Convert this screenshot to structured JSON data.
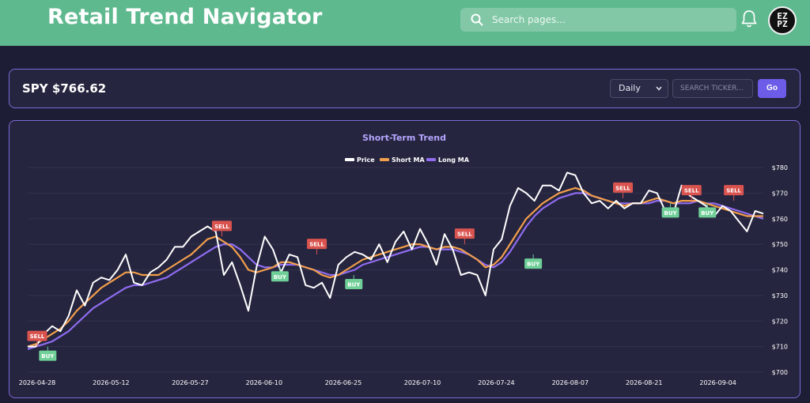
{
  "app": {
    "title": "Retail Trend Navigator"
  },
  "search": {
    "placeholder": "Search pages..."
  },
  "user": {
    "avatar_text": "EZ PZ"
  },
  "ticker": {
    "label": "SPY $766.62",
    "interval": "Daily",
    "input_placeholder": "SEARCH TICKER...",
    "go_label": "Go"
  },
  "chart_data": {
    "type": "line",
    "title": "Short-Term Trend",
    "legend": [
      "Price",
      "Short MA",
      "Long MA"
    ],
    "colors": {
      "Price": "#ffffff",
      "Short MA": "#f29e4c",
      "Long MA": "#8f6cf0"
    },
    "x_ticks": [
      "2026-04-28",
      "2026-05-12",
      "2026-05-27",
      "2026-06-10",
      "2026-06-25",
      "2026-07-10",
      "2026-07-24",
      "2026-08-07",
      "2026-08-21",
      "2026-09-04"
    ],
    "y_ticks": [
      "$700",
      "$710",
      "$720",
      "$730",
      "$740",
      "$750",
      "$760",
      "$770",
      "$780"
    ],
    "ylim": [
      700,
      780
    ],
    "grid": true,
    "legend_position": "top-center",
    "price": [
      710,
      710,
      715,
      718,
      716,
      722,
      732,
      726,
      735,
      737,
      736,
      740,
      746,
      735,
      734,
      739,
      741,
      744,
      749,
      749,
      753,
      755,
      757,
      755,
      738,
      743,
      734,
      724,
      741,
      753,
      748,
      739,
      746,
      745,
      734,
      733,
      735,
      729,
      742,
      745,
      747,
      746,
      744,
      750,
      743,
      751,
      755,
      748,
      756,
      750,
      742,
      754,
      748,
      738,
      739,
      738,
      730,
      748,
      752,
      765,
      772,
      770,
      767,
      773,
      773,
      771,
      778,
      777,
      770,
      766,
      767,
      764,
      767,
      764,
      766,
      766,
      771,
      770,
      763,
      762,
      773,
      769,
      767,
      765,
      761,
      765,
      763,
      759,
      755,
      763,
      762
    ],
    "short_ma": [
      710,
      711,
      713,
      715,
      717,
      720,
      724,
      727,
      730,
      733,
      735,
      737,
      739,
      739,
      738,
      738,
      738,
      740,
      742,
      744,
      746,
      749,
      752,
      753,
      751,
      749,
      745,
      740,
      739,
      740,
      741,
      743,
      743,
      742,
      741,
      740,
      738,
      737,
      738,
      740,
      742,
      744,
      745,
      746,
      747,
      748,
      749,
      750,
      750,
      749,
      748,
      749,
      749,
      748,
      746,
      744,
      741,
      742,
      745,
      750,
      755,
      760,
      763,
      766,
      768,
      770,
      771,
      772,
      771,
      769,
      768,
      767,
      766,
      765,
      766,
      766,
      767,
      768,
      767,
      766,
      767,
      767,
      767,
      766,
      765,
      764,
      763,
      762,
      761,
      761,
      761
    ],
    "long_ma": [
      709,
      710,
      711,
      712,
      714,
      716,
      719,
      722,
      725,
      727,
      729,
      731,
      733,
      734,
      734,
      735,
      736,
      737,
      739,
      741,
      743,
      745,
      747,
      749,
      750,
      750,
      748,
      745,
      742,
      741,
      741,
      742,
      742,
      742,
      741,
      740,
      739,
      738,
      738,
      739,
      740,
      742,
      743,
      744,
      745,
      746,
      747,
      748,
      749,
      749,
      748,
      748,
      748,
      747,
      746,
      744,
      742,
      741,
      743,
      747,
      752,
      757,
      761,
      764,
      766,
      768,
      769,
      770,
      770,
      769,
      768,
      767,
      766,
      766,
      766,
      766,
      766,
      767,
      767,
      766,
      766,
      766,
      767,
      766,
      766,
      765,
      764,
      763,
      762,
      761,
      760
    ],
    "signals": [
      {
        "label": "SELL",
        "x": "2026-04-28",
        "y": 710
      },
      {
        "label": "BUY",
        "x": "2026-04-30",
        "y": 710
      },
      {
        "label": "SELL",
        "x": "2026-06-02",
        "y": 753
      },
      {
        "label": "BUY",
        "x": "2026-06-13",
        "y": 741
      },
      {
        "label": "SELL",
        "x": "2026-06-20",
        "y": 746
      },
      {
        "label": "BUY",
        "x": "2026-06-27",
        "y": 738
      },
      {
        "label": "SELL",
        "x": "2026-07-18",
        "y": 750
      },
      {
        "label": "BUY",
        "x": "2026-07-31",
        "y": 746
      },
      {
        "label": "SELL",
        "x": "2026-08-17",
        "y": 768
      },
      {
        "label": "BUY",
        "x": "2026-08-26",
        "y": 766
      },
      {
        "label": "SELL",
        "x": "2026-08-30",
        "y": 767
      },
      {
        "label": "BUY",
        "x": "2026-09-02",
        "y": 766
      },
      {
        "label": "SELL",
        "x": "2026-09-07",
        "y": 767
      }
    ]
  }
}
